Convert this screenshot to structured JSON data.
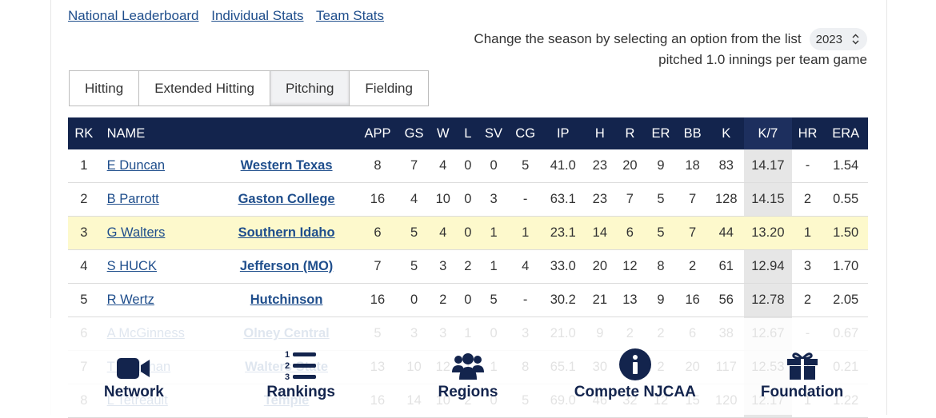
{
  "links": [
    "National Leaderboard",
    "Individual Stats",
    "Team Stats"
  ],
  "season": {
    "prompt": "Change the season by selecting an option from the list",
    "selected": "2023"
  },
  "note": "pitched 1.0 innings per team game",
  "tabs": [
    {
      "label": "Hitting",
      "active": false
    },
    {
      "label": "Extended Hitting",
      "active": false
    },
    {
      "label": "Pitching",
      "active": true
    },
    {
      "label": "Fielding",
      "active": false
    }
  ],
  "table": {
    "headers": [
      "RK",
      "NAME",
      "",
      "APP",
      "GS",
      "W",
      "L",
      "SV",
      "CG",
      "IP",
      "H",
      "R",
      "ER",
      "BB",
      "K",
      "K/7",
      "HR",
      "ERA"
    ],
    "rows": [
      {
        "rk": "1",
        "name": "E Duncan",
        "team": "Western Texas",
        "app": "8",
        "gs": "7",
        "w": "4",
        "l": "0",
        "sv": "0",
        "cg": "5",
        "ip": "41.0",
        "h": "23",
        "r": "20",
        "er": "9",
        "bb": "18",
        "k": "83",
        "k7": "14.17",
        "hr": "-",
        "era": "1.54"
      },
      {
        "rk": "2",
        "name": "B Parrott",
        "team": "Gaston College",
        "app": "16",
        "gs": "4",
        "w": "10",
        "l": "0",
        "sv": "3",
        "cg": "-",
        "ip": "63.1",
        "h": "23",
        "r": "7",
        "er": "5",
        "bb": "7",
        "k": "128",
        "k7": "14.15",
        "hr": "2",
        "era": "0.55"
      },
      {
        "rk": "3",
        "name": "G Walters",
        "team": "Southern Idaho",
        "app": "6",
        "gs": "5",
        "w": "4",
        "l": "0",
        "sv": "1",
        "cg": "1",
        "ip": "23.1",
        "h": "14",
        "r": "6",
        "er": "5",
        "bb": "7",
        "k": "44",
        "k7": "13.20",
        "hr": "1",
        "era": "1.50",
        "highlight": true
      },
      {
        "rk": "4",
        "name": "S HUCK",
        "team": "Jefferson (MO)",
        "app": "7",
        "gs": "5",
        "w": "3",
        "l": "2",
        "sv": "1",
        "cg": "4",
        "ip": "33.0",
        "h": "20",
        "r": "12",
        "er": "8",
        "bb": "2",
        "k": "61",
        "k7": "12.94",
        "hr": "3",
        "era": "1.70"
      },
      {
        "rk": "5",
        "name": "R Wertz",
        "team": "Hutchinson",
        "app": "16",
        "gs": "0",
        "w": "2",
        "l": "0",
        "sv": "5",
        "cg": "-",
        "ip": "30.2",
        "h": "21",
        "r": "13",
        "er": "9",
        "bb": "16",
        "k": "56",
        "k7": "12.78",
        "hr": "2",
        "era": "2.05"
      },
      {
        "rk": "6",
        "name": "A McGinness",
        "team": "Olney Central",
        "app": "5",
        "gs": "3",
        "w": "3",
        "l": "1",
        "sv": "0",
        "cg": "3",
        "ip": "21.0",
        "h": "9",
        "r": "2",
        "er": "2",
        "bb": "6",
        "k": "38",
        "k7": "12.67",
        "hr": "-",
        "era": "0.67"
      },
      {
        "rk": "7",
        "name": "T Callahan",
        "team": "Walters State",
        "app": "13",
        "gs": "10",
        "w": "12",
        "l": "1",
        "sv": "1",
        "cg": "8",
        "ip": "65.1",
        "h": "30",
        "r": "2",
        "er": "2",
        "bb": "20",
        "k": "117",
        "k7": "12.53",
        "hr": "1",
        "era": "0.21"
      },
      {
        "rk": "8",
        "name": "L Tetreault",
        "team": "Temple",
        "app": "16",
        "gs": "14",
        "w": "10",
        "l": "2",
        "sv": "0",
        "cg": "5",
        "ip": "69.0",
        "h": "46",
        "r": "32",
        "er": "12",
        "bb": "15",
        "k": "120",
        "k7": "12.17",
        "hr": "1",
        "era": "1.22"
      }
    ]
  },
  "bottom_nav": [
    {
      "label": "Network",
      "icon": "video-camera-icon"
    },
    {
      "label": "Rankings",
      "icon": "numbered-list-icon"
    },
    {
      "label": "Regions",
      "icon": "users-group-icon"
    },
    {
      "label": "Compete NJCAA",
      "icon": "info-circle-icon"
    },
    {
      "label": "Foundation",
      "icon": "gift-icon"
    }
  ],
  "colors": {
    "navy": "#13244d",
    "link": "#1f4e8c",
    "highlight": "#fdf9cc",
    "k7_column": "#e6e6e6"
  }
}
